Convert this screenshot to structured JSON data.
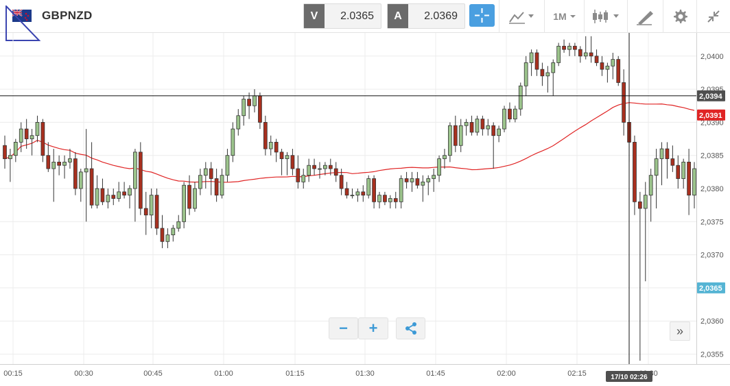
{
  "header": {
    "symbol": "GBPNZD",
    "flag_icon": "gb-nz-flag-icon",
    "sell_label": "V",
    "sell_price": "2.0365",
    "buy_label": "A",
    "buy_price": "2.0369",
    "period_label": "1M",
    "tools": [
      "crosshair-icon",
      "line-chart-icon",
      "candlestick-icon",
      "drawing-pen-icon",
      "gear-icon",
      "collapse-icon"
    ]
  },
  "chart_data": {
    "type": "candlestick",
    "x_ticks": [
      "00:15",
      "00:30",
      "00:45",
      "01:00",
      "01:15",
      "01:30",
      "01:45",
      "02:00",
      "02:15",
      "02:30"
    ],
    "y_ticks": [
      "2,0355",
      "2,0360",
      "2,0365",
      "2,0370",
      "2,0375",
      "2,0380",
      "2,0385",
      "2,0390",
      "2,0395",
      "2,0400"
    ],
    "ylim": [
      2.03535,
      2.04035
    ],
    "crosshair_price": "2,0394",
    "crosshair_price_value": 2.0394,
    "crosshair_time": "17/10 02:26",
    "ma_price": "2,0391",
    "ma_price_value": 2.03911,
    "bid_price": "2,0365",
    "bid_price_value": 2.0365,
    "colors": {
      "up": "#9cc48c",
      "down": "#a8301f",
      "ma": "#e02424",
      "bid": "#55b4d4",
      "crosshair_label": "#4f4f4f"
    },
    "candles": [
      [
        2.03865,
        2.0388,
        2.0383,
        2.03845
      ],
      [
        2.03845,
        2.0386,
        2.0381,
        2.0385
      ],
      [
        2.0385,
        2.03875,
        2.0384,
        2.0387
      ],
      [
        2.0387,
        2.039,
        2.03855,
        2.0389
      ],
      [
        2.0389,
        2.03905,
        2.0386,
        2.03875
      ],
      [
        2.03875,
        2.0389,
        2.0385,
        2.0388
      ],
      [
        2.0388,
        2.0391,
        2.0387,
        2.039
      ],
      [
        2.039,
        2.03905,
        2.0384,
        2.0385
      ],
      [
        2.0385,
        2.0387,
        2.03825,
        2.0383
      ],
      [
        2.0383,
        2.0386,
        2.0378,
        2.0384
      ],
      [
        2.0384,
        2.0385,
        2.0382,
        2.03835
      ],
      [
        2.03835,
        2.0385,
        2.03815,
        2.0384
      ],
      [
        2.0384,
        2.0386,
        2.0383,
        2.03845
      ],
      [
        2.03845,
        2.03855,
        2.0379,
        2.038
      ],
      [
        2.038,
        2.0383,
        2.0378,
        2.03825
      ],
      [
        2.03825,
        2.0389,
        2.0375,
        2.0383
      ],
      [
        2.0383,
        2.0387,
        2.0377,
        2.03775
      ],
      [
        2.03775,
        2.0382,
        2.0377,
        2.038
      ],
      [
        2.038,
        2.03815,
        2.03775,
        2.0378
      ],
      [
        2.0378,
        2.038,
        2.0377,
        2.0379
      ],
      [
        2.0379,
        2.038,
        2.03775,
        2.03785
      ],
      [
        2.03785,
        2.0381,
        2.0378,
        2.03795
      ],
      [
        2.03795,
        2.0381,
        2.03785,
        2.0379
      ],
      [
        2.0379,
        2.03805,
        2.0377,
        2.038
      ],
      [
        2.038,
        2.0386,
        2.0375,
        2.03855
      ],
      [
        2.03855,
        2.0387,
        2.0376,
        2.0377
      ],
      [
        2.0377,
        2.03795,
        2.0373,
        2.0376
      ],
      [
        2.0376,
        2.038,
        2.0374,
        2.0379
      ],
      [
        2.0379,
        2.038,
        2.0373,
        2.0374
      ],
      [
        2.0374,
        2.0376,
        2.0371,
        2.0372
      ],
      [
        2.0372,
        2.0374,
        2.0371,
        2.0373
      ],
      [
        2.0373,
        2.03745,
        2.0372,
        2.0374
      ],
      [
        2.0374,
        2.0376,
        2.03735,
        2.0375
      ],
      [
        2.0375,
        2.0381,
        2.0374,
        2.03805
      ],
      [
        2.03805,
        2.0382,
        2.0376,
        2.0377
      ],
      [
        2.0377,
        2.0381,
        2.03765,
        2.038
      ],
      [
        2.038,
        2.0383,
        2.0379,
        2.0382
      ],
      [
        2.0382,
        2.0384,
        2.038,
        2.0383
      ],
      [
        2.0383,
        2.0384,
        2.0379,
        2.03815
      ],
      [
        2.03815,
        2.0383,
        2.0378,
        2.0379
      ],
      [
        2.0379,
        2.0383,
        2.03785,
        2.0382
      ],
      [
        2.0382,
        2.0386,
        2.0381,
        2.0385
      ],
      [
        2.0385,
        2.039,
        2.0384,
        2.0389
      ],
      [
        2.0389,
        2.0392,
        2.0388,
        2.0391
      ],
      [
        2.0391,
        2.0394,
        2.03895,
        2.03935
      ],
      [
        2.03935,
        2.03945,
        2.03905,
        2.03925
      ],
      [
        2.03925,
        2.0395,
        2.03915,
        2.0394
      ],
      [
        2.0394,
        2.03945,
        2.0389,
        2.039
      ],
      [
        2.039,
        2.0391,
        2.0385,
        2.0386
      ],
      [
        2.0386,
        2.0388,
        2.0385,
        2.0387
      ],
      [
        2.0387,
        2.03875,
        2.0384,
        2.03855
      ],
      [
        2.03855,
        2.0386,
        2.0382,
        2.03845
      ],
      [
        2.03845,
        2.03855,
        2.0382,
        2.0385
      ],
      [
        2.0385,
        2.0386,
        2.0382,
        2.0383
      ],
      [
        2.0383,
        2.0385,
        2.038,
        2.0381
      ],
      [
        2.0381,
        2.0383,
        2.038,
        2.0382
      ],
      [
        2.0382,
        2.03845,
        2.0381,
        2.03835
      ],
      [
        2.03835,
        2.03845,
        2.0382,
        2.0383
      ],
      [
        2.0383,
        2.0384,
        2.03815,
        2.0383
      ],
      [
        2.0383,
        2.0384,
        2.0382,
        2.03835
      ],
      [
        2.03835,
        2.03845,
        2.0382,
        2.0383
      ],
      [
        2.0383,
        2.0384,
        2.0381,
        2.0382
      ],
      [
        2.0382,
        2.0383,
        2.0379,
        2.038
      ],
      [
        2.038,
        2.0381,
        2.03785,
        2.0379
      ],
      [
        2.0379,
        2.038,
        2.03785,
        2.0379
      ],
      [
        2.0379,
        2.038,
        2.0378,
        2.03795
      ],
      [
        2.03795,
        2.03805,
        2.0378,
        2.0379
      ],
      [
        2.0379,
        2.0382,
        2.03785,
        2.03815
      ],
      [
        2.03815,
        2.0382,
        2.0377,
        2.0378
      ],
      [
        2.0378,
        2.03795,
        2.0377,
        2.0379
      ],
      [
        2.0379,
        2.03795,
        2.03775,
        2.0378
      ],
      [
        2.0378,
        2.0379,
        2.0377,
        2.03785
      ],
      [
        2.03785,
        2.03795,
        2.0377,
        2.0378
      ],
      [
        2.0378,
        2.0382,
        2.0377,
        2.03815
      ],
      [
        2.03815,
        2.03825,
        2.038,
        2.0381
      ],
      [
        2.0381,
        2.03825,
        2.03795,
        2.03815
      ],
      [
        2.03815,
        2.03825,
        2.038,
        2.03805
      ],
      [
        2.03805,
        2.0382,
        2.0378,
        2.0381
      ],
      [
        2.0381,
        2.0382,
        2.0379,
        2.03815
      ],
      [
        2.03815,
        2.0383,
        2.03795,
        2.0382
      ],
      [
        2.0382,
        2.0385,
        2.0381,
        2.03845
      ],
      [
        2.03845,
        2.0386,
        2.0383,
        2.0385
      ],
      [
        2.0385,
        2.039,
        2.0384,
        2.03895
      ],
      [
        2.03895,
        2.0391,
        2.03855,
        2.03865
      ],
      [
        2.03865,
        2.03905,
        2.03855,
        2.03895
      ],
      [
        2.03895,
        2.03905,
        2.0388,
        2.039
      ],
      [
        2.039,
        2.0391,
        2.0388,
        2.03885
      ],
      [
        2.03885,
        2.0391,
        2.0388,
        2.03905
      ],
      [
        2.03905,
        2.0391,
        2.0388,
        2.0389
      ],
      [
        2.0389,
        2.03905,
        2.0388,
        2.03895
      ],
      [
        2.03895,
        2.039,
        2.0383,
        2.0388
      ],
      [
        2.0388,
        2.03895,
        2.0387,
        2.0389
      ],
      [
        2.0389,
        2.03925,
        2.03885,
        2.0392
      ],
      [
        2.0392,
        2.0393,
        2.039,
        2.03905
      ],
      [
        2.03905,
        2.03925,
        2.039,
        2.0392
      ],
      [
        2.0392,
        2.0396,
        2.0391,
        2.03955
      ],
      [
        2.03955,
        2.04,
        2.0394,
        2.0399
      ],
      [
        2.0399,
        2.0401,
        2.0397,
        2.04005
      ],
      [
        2.04005,
        2.0401,
        2.0397,
        2.0398
      ],
      [
        2.0398,
        2.0399,
        2.03955,
        2.0397
      ],
      [
        2.0397,
        2.03985,
        2.03945,
        2.03975
      ],
      [
        2.03975,
        2.03995,
        2.0394,
        2.0399
      ],
      [
        2.0399,
        2.0402,
        2.03985,
        2.04015
      ],
      [
        2.04015,
        2.04025,
        2.04005,
        2.0401
      ],
      [
        2.0401,
        2.0402,
        2.04,
        2.04015
      ],
      [
        2.04015,
        2.0402,
        2.04,
        2.0401
      ],
      [
        2.0401,
        2.04015,
        2.0399,
        2.04
      ],
      [
        2.04,
        2.0403,
        2.03995,
        2.04005
      ],
      [
        2.04005,
        2.0403,
        2.0399,
        2.04
      ],
      [
        2.04,
        2.0401,
        2.03985,
        2.0399
      ],
      [
        2.0399,
        2.04,
        2.0397,
        2.0398
      ],
      [
        2.0398,
        2.0399,
        2.0396,
        2.03985
      ],
      [
        2.03985,
        2.04005,
        2.03965,
        2.03995
      ],
      [
        2.03995,
        2.04,
        2.03955,
        2.0396
      ],
      [
        2.0396,
        2.0398,
        2.0388,
        2.039
      ],
      [
        2.039,
        2.03905,
        2.0384,
        2.0387
      ],
      [
        2.0387,
        2.0388,
        2.0376,
        2.0378
      ],
      [
        2.0378,
        2.03795,
        2.0354,
        2.0377
      ],
      [
        2.0377,
        2.0381,
        2.0366,
        2.0379
      ],
      [
        2.0379,
        2.0383,
        2.0375,
        2.0382
      ],
      [
        2.0382,
        2.0386,
        2.0377,
        2.03845
      ],
      [
        2.03845,
        2.0387,
        2.03805,
        2.0386
      ],
      [
        2.0386,
        2.0387,
        2.03815,
        2.03845
      ],
      [
        2.03845,
        2.03865,
        2.03825,
        2.03835
      ],
      [
        2.03835,
        2.0385,
        2.038,
        2.03815
      ],
      [
        2.03815,
        2.03845,
        2.038,
        2.0384
      ],
      [
        2.0384,
        2.0386,
        2.0376,
        2.0379
      ],
      [
        2.0379,
        2.0384,
        2.0377,
        2.0383
      ]
    ]
  },
  "controls": {
    "zoom_out_label": "−",
    "zoom_in_label": "+",
    "share_icon": "share-icon",
    "scroll_right_label": "»"
  }
}
